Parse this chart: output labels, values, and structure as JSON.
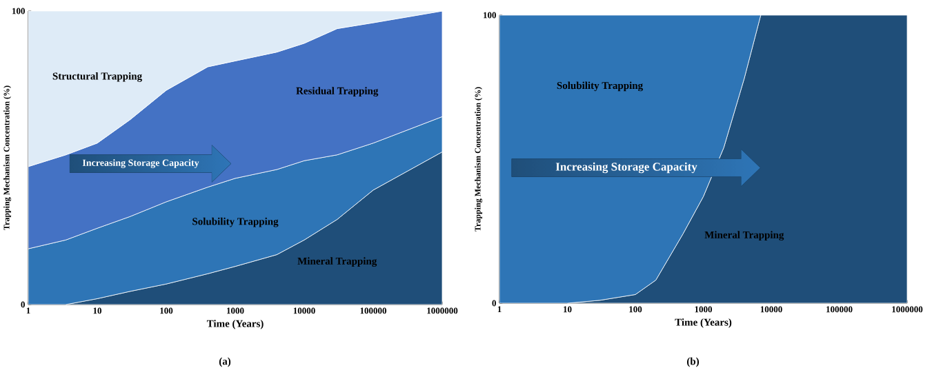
{
  "chart_data": [
    {
      "type": "area",
      "stacked": true,
      "log": "x",
      "xlabel": "Time (Years)",
      "ylabel": "Trapping Mechanism Concentration (%)",
      "x": [
        1,
        3.5,
        10,
        30,
        100,
        400,
        1000,
        4000,
        10000,
        30000,
        100000,
        1000000
      ],
      "series": [
        {
          "name": "Mineral Trapping",
          "color": "#1f4e79",
          "values": [
            null,
            0,
            2,
            4.5,
            7,
            10.5,
            13,
            17,
            22,
            29,
            39,
            52
          ]
        },
        {
          "name": "Solubility Trapping",
          "color": "#2e75b6",
          "values": [
            19,
            22,
            24,
            25.5,
            28,
            29.5,
            30,
            29,
            27,
            22,
            16,
            12
          ]
        },
        {
          "name": "Residual Trapping",
          "color": "#4472c4",
          "values": [
            28,
            29,
            29,
            33,
            38,
            41,
            40,
            40,
            40,
            43,
            41,
            36
          ]
        },
        {
          "name": "Structural Trapping",
          "color": "#deebf7",
          "values": [
            53,
            49,
            45,
            37,
            27,
            19,
            17,
            14,
            11,
            6,
            4,
            0
          ]
        }
      ],
      "xlim": [
        1,
        1000000
      ],
      "xticks": [
        1,
        10,
        100,
        1000,
        10000,
        100000,
        1000000
      ],
      "ylim": [
        0,
        100
      ],
      "yticks": [
        0,
        100
      ],
      "annotations": [
        "Increasing Storage Capacity",
        "(a)"
      ]
    },
    {
      "type": "area",
      "stacked": true,
      "log": "x",
      "xlabel": "Time (Years)",
      "ylabel": "Trapping Mechanism Concentration (%)",
      "x": [
        1,
        10,
        30,
        100,
        200,
        500,
        1000,
        2000,
        4000,
        7000,
        1000000
      ],
      "series": [
        {
          "name": "Mineral Trapping",
          "color": "#1f4e79",
          "values": [
            null,
            0,
            1,
            3,
            8,
            24,
            37,
            54,
            78,
            100,
            100
          ]
        },
        {
          "name": "Solubility Trapping",
          "color": "#2e75b6",
          "values": [
            100,
            100,
            99,
            97,
            92,
            76,
            63,
            46,
            22,
            0,
            null
          ]
        }
      ],
      "xlim": [
        1,
        1000000
      ],
      "xticks": [
        1,
        10,
        100,
        1000,
        10000,
        100000,
        1000000
      ],
      "ylim": [
        0,
        100
      ],
      "yticks": [
        0,
        100
      ],
      "annotations": [
        "Increasing Storage Capacity",
        "(b)"
      ]
    }
  ]
}
